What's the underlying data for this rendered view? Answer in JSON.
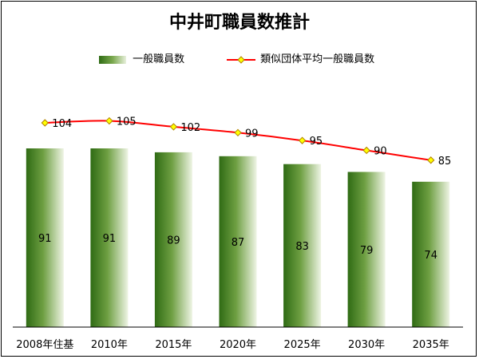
{
  "chart_data": {
    "type": "bar",
    "title": "中井町職員数推計",
    "categories": [
      "2008年住基",
      "2010年",
      "2015年",
      "2020年",
      "2025年",
      "2030年",
      "2035年"
    ],
    "series": [
      {
        "name": "一般職員数",
        "type": "bar",
        "values": [
          91,
          91,
          89,
          87,
          83,
          79,
          74
        ],
        "color": "#4e8a2a"
      },
      {
        "name": "類似団体平均一般職員数",
        "type": "line",
        "values": [
          104,
          105,
          102,
          99,
          95,
          90,
          85
        ],
        "color": "#ff0000",
        "marker_color": "#ffff00"
      }
    ],
    "ylim": [
      0,
      130
    ],
    "grid": false,
    "legend_position": "top-center"
  }
}
